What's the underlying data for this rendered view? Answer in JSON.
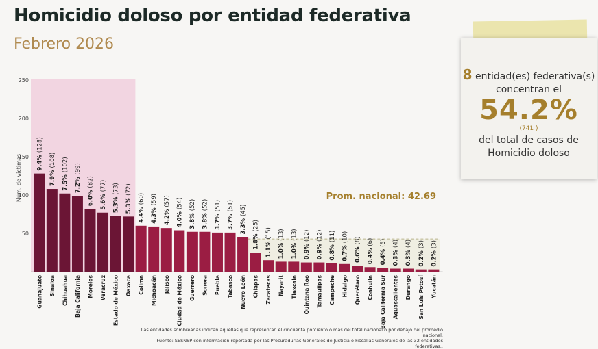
{
  "header": {
    "title": "Homicidio doloso por entidad federativa",
    "subtitle": "Febrero 2026"
  },
  "card": {
    "count": "8",
    "count_suffix": "entidad(es) federativa(s)",
    "line2": "concentran el",
    "percent": "54.2%",
    "cases": "(741 )",
    "line3": "del total de casos de",
    "line4": "Homicidio doloso"
  },
  "notes": {
    "line1": "Las entidades sombreadas indican aquellas que representan el cincuenta porciento o más del total nacional o por debajo del promedio nacional.",
    "line2": "Fuente: SESNSP con información reportada por las Procuradurías Generales de Justicia o Fiscalías Generales de las 32 entidades federativas.."
  },
  "colors": {
    "top": "#6b1535",
    "rest": "#9b1d43",
    "shade_top": "#f2d5e1",
    "shade_low": "#efeee2",
    "gold": "#a57f2c"
  },
  "chart_data": {
    "type": "bar",
    "ylabel": "Núm. de víctimas",
    "ylim": [
      0,
      250
    ],
    "yticks": [
      50,
      100,
      150,
      200,
      250
    ],
    "avg_label": "Prom. nacional: 42.69",
    "avg": 42.69,
    "highlight_count": 8,
    "categories": [
      "Guanajuato",
      "Sinaloa",
      "Chihuahua",
      "Baja California",
      "Morelos",
      "Veracruz",
      "Estado de México",
      "Oaxaca",
      "Colima",
      "Michoacán",
      "Jalisco",
      "Ciudad de México",
      "Guerrero",
      "Sonora",
      "Puebla",
      "Tabasco",
      "Nuevo León",
      "Chiapas",
      "Zacatecas",
      "Nayarit",
      "Tlaxcala",
      "Quintana Roo",
      "Tamaulipas",
      "Campeche",
      "Hidalgo",
      "Querétaro",
      "Coahuila",
      "Baja California Sur",
      "Aguascalientes",
      "Durango",
      "San Luis Potosí",
      "Yucatán"
    ],
    "values": [
      128,
      108,
      102,
      99,
      82,
      77,
      73,
      72,
      60,
      59,
      57,
      54,
      52,
      52,
      51,
      51,
      45,
      25,
      15,
      13,
      13,
      12,
      12,
      11,
      10,
      8,
      6,
      5,
      4,
      4,
      3,
      3
    ],
    "percents": [
      "9.4%",
      "7.9%",
      "7.5%",
      "7.2%",
      "6.0%",
      "5.6%",
      "5.3%",
      "5.3%",
      "4.4%",
      "4.3%",
      "4.2%",
      "4.0%",
      "3.8%",
      "3.8%",
      "3.7%",
      "3.7%",
      "3.3%",
      "1.8%",
      "1.1%",
      "1.0%",
      "1.0%",
      "0.9%",
      "0.9%",
      "0.8%",
      "0.7%",
      "0.6%",
      "0.4%",
      "0.4%",
      "0.3%",
      "0.3%",
      "0.2%",
      "0.2%"
    ]
  }
}
